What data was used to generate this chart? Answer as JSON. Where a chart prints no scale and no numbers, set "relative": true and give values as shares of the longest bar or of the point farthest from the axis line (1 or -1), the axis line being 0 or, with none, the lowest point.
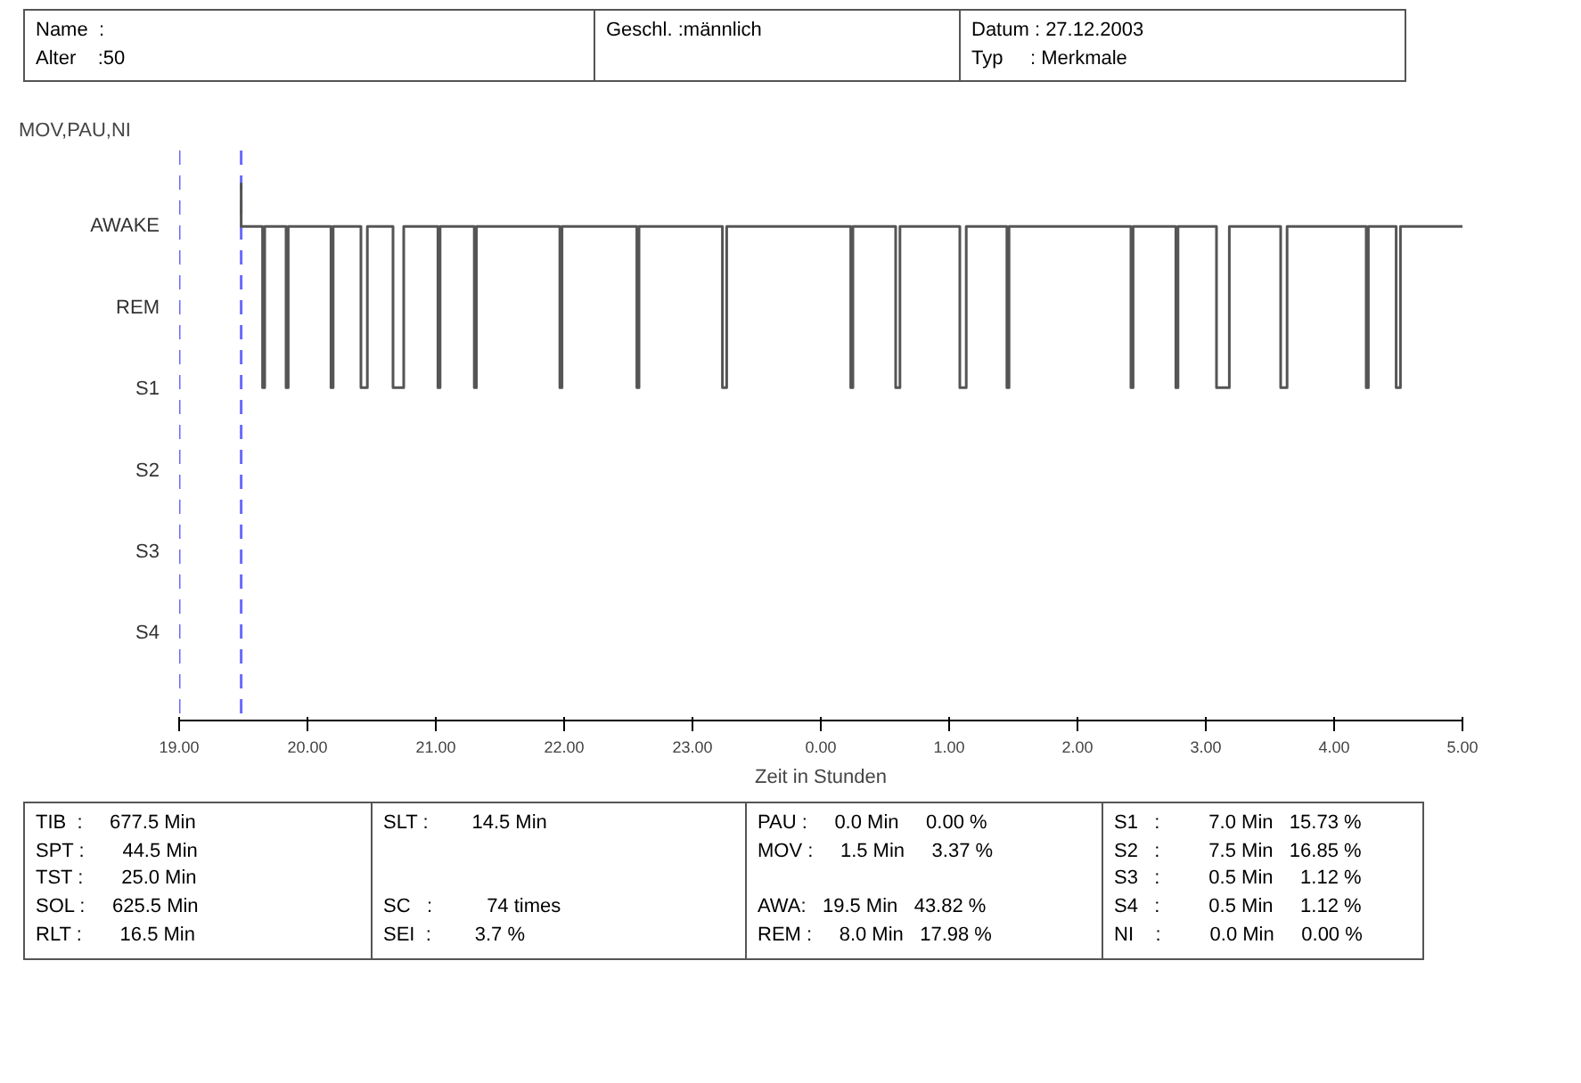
{
  "chart_data": {
    "type": "step",
    "title": "MOV,PAU,NI",
    "xlabel": "Zeit in Stunden",
    "relative": true,
    "x": [
      "2003-12-27T19:29",
      "2003-12-27T19:29",
      "2003-12-27T19:39",
      "2003-12-27T19:40",
      "2003-12-27T19:50",
      "2003-12-27T19:51",
      "2003-12-27T20:11",
      "2003-12-27T20:12",
      "2003-12-27T20:25",
      "2003-12-27T20:28",
      "2003-12-27T20:40",
      "2003-12-27T20:45",
      "2003-12-27T21:01",
      "2003-12-27T21:02",
      "2003-12-27T21:18",
      "2003-12-27T21:19",
      "2003-12-27T21:58",
      "2003-12-27T21:59",
      "2003-12-27T22:34",
      "2003-12-27T22:35",
      "2003-12-27T23:14",
      "2003-12-27T23:16",
      "2003-12-28T00:14",
      "2003-12-28T00:15",
      "2003-12-28T00:35",
      "2003-12-28T00:37",
      "2003-12-28T01:05",
      "2003-12-28T01:08",
      "2003-12-28T01:27",
      "2003-12-28T01:28",
      "2003-12-28T02:25",
      "2003-12-28T02:26",
      "2003-12-28T02:46",
      "2003-12-28T02:47",
      "2003-12-28T03:05",
      "2003-12-28T03:11",
      "2003-12-28T03:35",
      "2003-12-28T03:38",
      "2003-12-28T04:15",
      "2003-12-28T04:16",
      "2003-12-28T04:29",
      "2003-12-28T04:31",
      "2003-12-28T05:00"
    ],
    "series": [
      {
        "color": "#555555",
        "values": [
          1,
          0.919,
          0.619,
          0.919,
          0.619,
          0.919,
          0.619,
          0.919,
          0.619,
          0.919,
          0.619,
          0.919,
          0.619,
          0.919,
          0.619,
          0.919,
          0.619,
          0.919,
          0.619,
          0.919,
          0.619,
          0.919,
          0.619,
          0.919,
          0.619,
          0.919,
          0.619,
          0.919,
          0.619,
          0.919,
          0.619,
          0.919,
          0.619,
          0.919,
          0.619,
          0.919,
          0.619,
          0.919,
          0.619,
          0.919,
          0.619,
          0.919,
          0.919
        ]
      }
    ],
    "xlim": [
      "2003-12-27T19:00",
      "2003-12-28T05:00"
    ],
    "xticks": [
      {
        "value": "2003-12-27T19:00",
        "label": "19.00"
      },
      {
        "value": "2003-12-27T20:00",
        "label": "20.00"
      },
      {
        "value": "2003-12-27T21:00",
        "label": "21.00"
      },
      {
        "value": "2003-12-27T22:00",
        "label": "22.00"
      },
      {
        "value": "2003-12-27T23:00",
        "label": "23.00"
      },
      {
        "value": "2003-12-28T00:00",
        "label": "0.00"
      },
      {
        "value": "2003-12-28T01:00",
        "label": "1.00"
      },
      {
        "value": "2003-12-28T02:00",
        "label": "2.00"
      },
      {
        "value": "2003-12-28T03:00",
        "label": "3.00"
      },
      {
        "value": "2003-12-28T04:00",
        "label": "4.00"
      },
      {
        "value": "2003-12-28T05:00",
        "label": "5.00"
      }
    ],
    "ref_lines": [
      {
        "axis": "x",
        "value": "2003-12-27T19:00",
        "color": "#6a6aff",
        "line_style": "dashed"
      },
      {
        "axis": "x",
        "value": "2003-12-27T19:29",
        "color": "#6a6aff",
        "line_style": "dashed"
      }
    ],
    "grid": false,
    "annotations": [
      "Name  :\nAlter    :50",
      "Geschl. :männlich",
      "Datum : 27.12.2003\nTyp     : Merkmale",
      "TIB  :     677.5 Min\nSPT :       44.5 Min\nTST :       25.0 Min\nSOL :     625.5 Min\nRLT :       16.5 Min",
      "SLT :        14.5 Min\n\n\nSC   :          74 times\nSEI  :        3.7 %",
      "PAU :     0.0 Min     0.00 %\nMOV :     1.5 Min     3.37 %\n\nAWA:   19.5 Min   43.82 %\nREM :     8.0 Min   17.98 %",
      "S1   :         7.0 Min   15.73 %\nS2   :         7.5 Min   16.85 %\nS3   :         0.5 Min     1.12 %\nS4   :         0.5 Min     1.12 %\nNI    :         0.0 Min     0.00 %",
      "AWAKE",
      "REM",
      "S1",
      "S2",
      "S3",
      "S4"
    ]
  }
}
